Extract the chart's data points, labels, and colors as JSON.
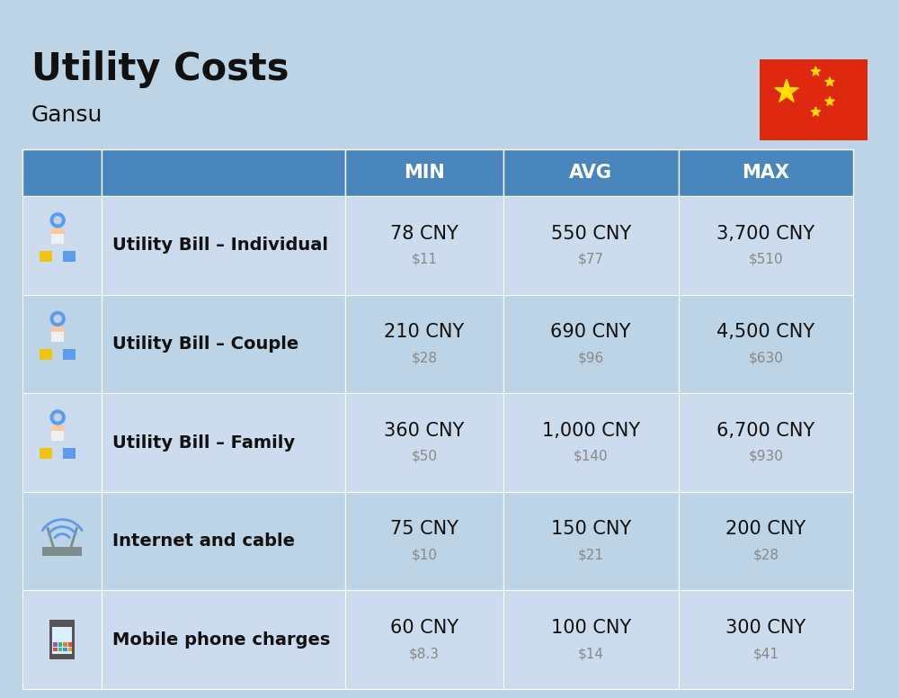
{
  "title": "Utility Costs",
  "subtitle": "Gansu",
  "background_color": "#bdd4e7",
  "header_color": "#4a86be",
  "header_text_color": "#ffffff",
  "row_color_light": "#ccdcee",
  "row_color_dark": "#bdd4e7",
  "text_color_main": "#111111",
  "text_color_sub": "#888888",
  "col_headers": [
    "MIN",
    "AVG",
    "MAX"
  ],
  "rows": [
    {
      "label": "Utility Bill – Individual",
      "min_cny": "78 CNY",
      "min_usd": "$11",
      "avg_cny": "550 CNY",
      "avg_usd": "$77",
      "max_cny": "3,700 CNY",
      "max_usd": "$510"
    },
    {
      "label": "Utility Bill – Couple",
      "min_cny": "210 CNY",
      "min_usd": "$28",
      "avg_cny": "690 CNY",
      "avg_usd": "$96",
      "max_cny": "4,500 CNY",
      "max_usd": "$630"
    },
    {
      "label": "Utility Bill – Family",
      "min_cny": "360 CNY",
      "min_usd": "$50",
      "avg_cny": "1,000 CNY",
      "avg_usd": "$140",
      "max_cny": "6,700 CNY",
      "max_usd": "$930"
    },
    {
      "label": "Internet and cable",
      "min_cny": "75 CNY",
      "min_usd": "$10",
      "avg_cny": "150 CNY",
      "avg_usd": "$21",
      "max_cny": "200 CNY",
      "max_usd": "$28"
    },
    {
      "label": "Mobile phone charges",
      "min_cny": "60 CNY",
      "min_usd": "$8.3",
      "avg_cny": "100 CNY",
      "avg_usd": "$14",
      "max_cny": "300 CNY",
      "max_usd": "$41"
    }
  ],
  "flag_color": "#de2910",
  "flag_star_color": "#ffde00",
  "title_fontsize": 30,
  "subtitle_fontsize": 18,
  "header_fontsize": 15,
  "label_fontsize": 14,
  "value_fontsize": 15,
  "sub_value_fontsize": 11
}
